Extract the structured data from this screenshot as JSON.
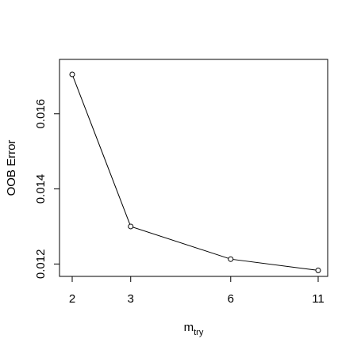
{
  "chart_data": {
    "type": "line",
    "title": "",
    "xlabel": {
      "main": "m",
      "sub": "try"
    },
    "ylabel": "OOB Error",
    "x": [
      2,
      3,
      6,
      11
    ],
    "xtick_labels": [
      "2",
      "3",
      "6",
      "11"
    ],
    "x_scale": "log",
    "series": [
      {
        "values": [
          0.01705,
          0.013,
          0.01213,
          0.01183
        ]
      }
    ],
    "yticks": [
      0.012,
      0.014,
      0.016
    ],
    "ytick_labels": [
      "0.012",
      "0.014",
      "0.016"
    ],
    "ylim": [
      0.01167,
      0.01745
    ],
    "grid": false,
    "marker": "open-circle",
    "line_color": "#000000"
  }
}
